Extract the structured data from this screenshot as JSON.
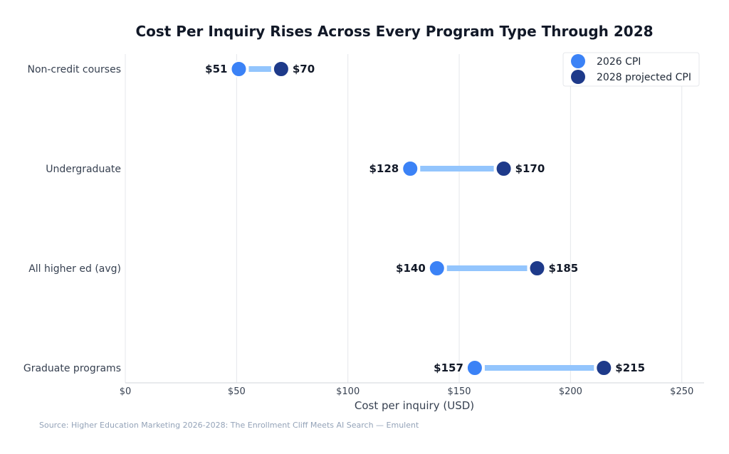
{
  "chart_data": {
    "type": "dumbbell",
    "title": "Cost Per Inquiry Rises Across Every Program Type Through 2028",
    "xlabel": "Cost per inquiry (USD)",
    "ylabel": "",
    "xlim": [
      0,
      260
    ],
    "xticks": [
      0,
      50,
      100,
      150,
      200,
      250
    ],
    "xtick_labels": [
      "$0",
      "$50",
      "$100",
      "$150",
      "$200",
      "$250"
    ],
    "grid": "vertical",
    "legend_position": "top-right",
    "categories": [
      "Non-credit courses",
      "Undergraduate",
      "All higher ed (avg)",
      "Graduate programs"
    ],
    "series": [
      {
        "name": "2026 CPI",
        "color": "#3b82f6",
        "values": [
          51,
          128,
          140,
          157
        ],
        "labels": [
          "$51",
          "$128",
          "$140",
          "$157"
        ]
      },
      {
        "name": "2028 projected CPI",
        "color": "#1e3a8a",
        "values": [
          70,
          170,
          185,
          215
        ],
        "labels": [
          "$70",
          "$170",
          "$185",
          "$215"
        ]
      }
    ],
    "connector_color": "#93c5fd",
    "source": "Source: Higher Education Marketing 2026-2028: The Enrollment Cliff Meets AI Search — Emulent"
  }
}
